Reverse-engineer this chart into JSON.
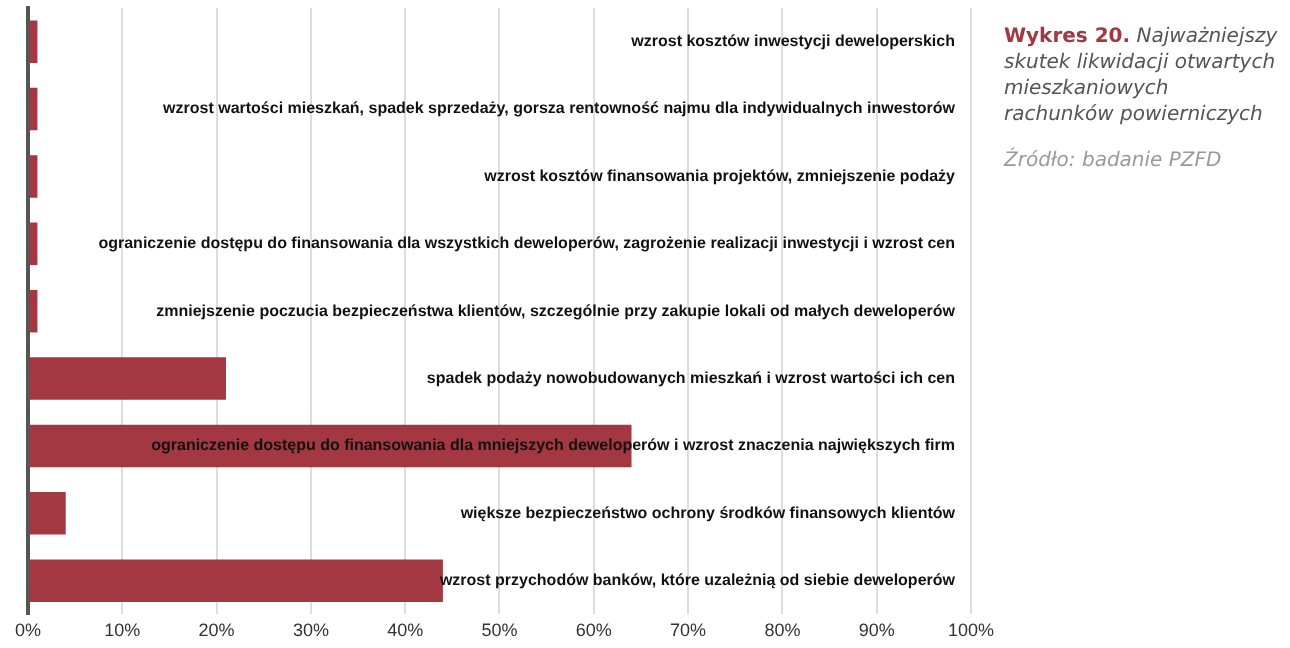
{
  "chart_data": {
    "type": "bar",
    "orientation": "horizontal",
    "title": "Wykres 20.",
    "subtitle": "Najważniejszy skutek likwidacji otwartych mieszkaniowych rachunków powierniczych",
    "categories": [
      "wzrost kosztów inwestycji deweloperskich",
      "wzrost wartości mieszkań, spadek sprzedaży, gorsza rentowność najmu dla indywidualnych inwestorów",
      "wzrost kosztów finansowania projektów, zmniejszenie podaży",
      "ograniczenie dostępu do finansowania dla wszystkich deweloperów, zagrożenie realizacji inwestycji i wzrost cen",
      "zmniejszenie poczucia bezpieczeństwa klientów, szczególnie przy zakupie lokali od małych deweloperów",
      "spadek podaży nowobudowanych mieszkań i wzrost wartości ich cen",
      "ograniczenie dostępu do finansowania dla mniejszych deweloperów i wzrost znaczenia największych firm",
      "większe bezpieczeństwo ochrony środków finansowych klientów",
      "wzrost przychodów banków, które uzależnią od siebie deweloperów"
    ],
    "values": [
      1,
      1,
      1,
      1,
      1,
      21,
      64,
      4,
      44
    ],
    "color": "#a33843",
    "xlim": [
      0,
      100
    ],
    "xticks": [
      {
        "value": 0,
        "label": "0%"
      },
      {
        "value": 10,
        "label": "10%"
      },
      {
        "value": 20,
        "label": "20%"
      },
      {
        "value": 30,
        "label": "30%"
      },
      {
        "value": 40,
        "label": "40%"
      },
      {
        "value": 50,
        "label": "50%"
      },
      {
        "value": 60,
        "label": "60%"
      },
      {
        "value": 70,
        "label": "70%"
      },
      {
        "value": 80,
        "label": "80%"
      },
      {
        "value": 90,
        "label": "90%"
      },
      {
        "value": 100,
        "label": "100%"
      }
    ],
    "grid": "x",
    "legend": false,
    "annotations": [
      "Źródło: badanie PZFD"
    ]
  }
}
